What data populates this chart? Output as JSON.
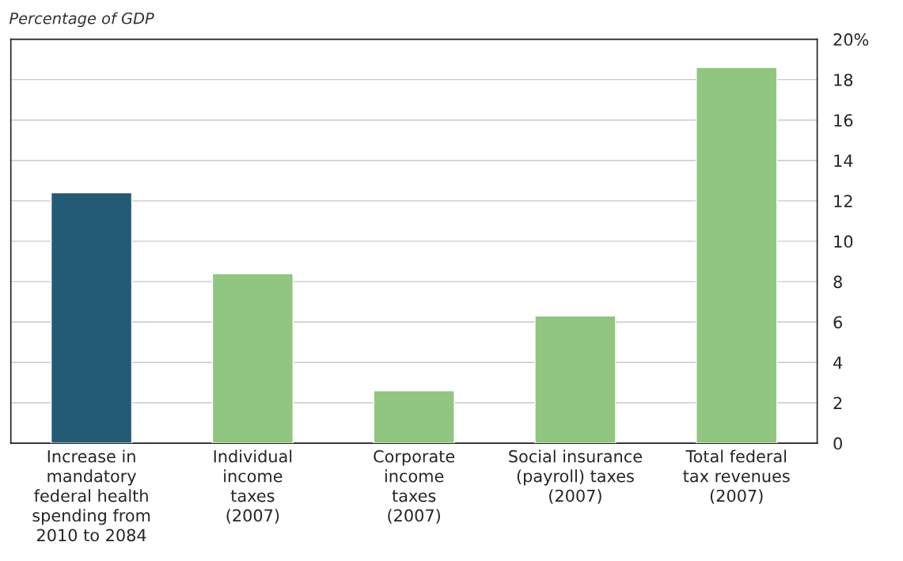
{
  "chart_data": {
    "type": "bar",
    "ylabel": "Percentage of GDP",
    "categories": [
      "Increase in\nmandatory\nfederal health\nspending from\n2010 to 2084",
      "Individual\nincome\ntaxes\n(2007)",
      "Corporate\nincome\ntaxes\n(2007)",
      "Social insurance\n(payroll) taxes\n(2007)",
      "Total federal\ntax revenues\n(2007)"
    ],
    "values": [
      12.4,
      8.4,
      2.6,
      6.3,
      18.6
    ],
    "colors": [
      "#245b74",
      "#90c67f",
      "#90c67f",
      "#90c67f",
      "#90c67f"
    ],
    "ylim": [
      0,
      20
    ],
    "yticks": [
      0,
      2,
      4,
      6,
      8,
      10,
      12,
      14,
      16,
      18,
      {
        "value": 20,
        "label": "20%"
      }
    ],
    "grid": "y"
  }
}
